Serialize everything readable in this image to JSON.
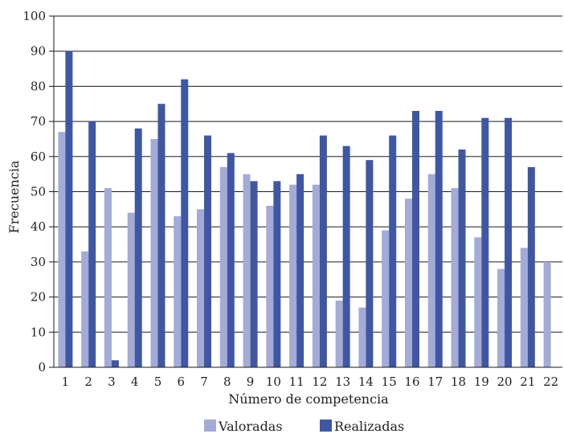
{
  "chart_data": {
    "type": "bar",
    "title": "",
    "xlabel": "Número de competencia",
    "ylabel": "Frecuencia",
    "ylim": [
      0,
      100
    ],
    "yticks": [
      0,
      10,
      20,
      30,
      40,
      50,
      60,
      70,
      80,
      90,
      100
    ],
    "grid": true,
    "legend_position": "bottom",
    "categories": [
      "1",
      "2",
      "3",
      "4",
      "5",
      "6",
      "7",
      "8",
      "9",
      "10",
      "11",
      "12",
      "13",
      "14",
      "15",
      "16",
      "17",
      "18",
      "19",
      "20",
      "21",
      "22"
    ],
    "series": [
      {
        "name": "Valoradas",
        "color": "#a3abd6",
        "values": [
          67,
          33,
          51,
          44,
          65,
          43,
          45,
          57,
          55,
          46,
          52,
          52,
          19,
          17,
          39,
          48,
          55,
          51,
          37,
          28,
          34,
          30
        ]
      },
      {
        "name": "Realizadas",
        "color": "#3f57a3",
        "values": [
          90,
          70,
          2,
          68,
          75,
          82,
          66,
          61,
          53,
          53,
          55,
          66,
          63,
          59,
          66,
          73,
          73,
          62,
          71,
          71,
          57,
          null
        ]
      }
    ]
  }
}
